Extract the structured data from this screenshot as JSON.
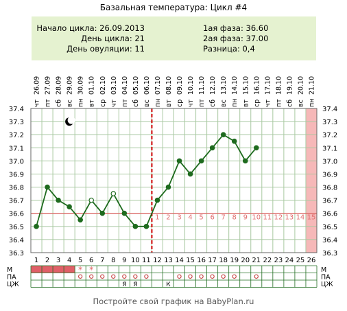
{
  "title": "Базальная температура: Цикл #4",
  "info": {
    "cycle_start": "Начало цикла: 26.09.2013",
    "cycle_day": "День цикла: 21",
    "ovulation_day": "День овуляции: 11",
    "phase1": "1ая фаза: 36.60",
    "phase2": "2ая фаза: 37.00",
    "difference": "Разница: 0,4"
  },
  "footer": "Постройте свой график на BabyPlan.ru",
  "chart_data": {
    "type": "line",
    "x": [
      1,
      2,
      3,
      4,
      5,
      6,
      7,
      8,
      9,
      10,
      11,
      12,
      13,
      14,
      15,
      16,
      17,
      18,
      19,
      20,
      21,
      22,
      23,
      24,
      25,
      26
    ],
    "dates": [
      "26.09",
      "27.09",
      "28.09",
      "29.09",
      "30.09",
      "01.10",
      "02.10",
      "03.10",
      "04.10",
      "05.10",
      "06.10",
      "07.10",
      "08.10",
      "09.10",
      "10.10",
      "11.10",
      "12.10",
      "13.10",
      "14.10",
      "15.10",
      "16.10",
      "17.10",
      "18.10",
      "19.10",
      "20.10",
      "21.10"
    ],
    "weekdays": [
      "чт",
      "пт",
      "сб",
      "вс",
      "пн",
      "вт",
      "ср",
      "чт",
      "пт",
      "сб",
      "вс",
      "пн",
      "вт",
      "ср",
      "чт",
      "пт",
      "сб",
      "вс",
      "пн",
      "вт",
      "ср",
      "чт",
      "пт",
      "сб",
      "вс",
      "пн"
    ],
    "series": [
      {
        "values": [
          36.5,
          36.8,
          36.7,
          36.65,
          36.55,
          36.7,
          36.6,
          36.75,
          36.6,
          36.5,
          36.5,
          36.7,
          36.8,
          37.0,
          36.9,
          37.0,
          37.1,
          37.2,
          37.15,
          37.0,
          37.1,
          null,
          null,
          null,
          null,
          null
        ]
      }
    ],
    "hollow_days": [
      6,
      8
    ],
    "y_ticks": [
      "37.4",
      "37.3",
      "37.2",
      "37.1",
      "37.0",
      "36.9",
      "36.8",
      "36.7",
      "36.6",
      "36.5",
      "36.4",
      "36.3"
    ],
    "ylim": [
      36.3,
      37.4
    ],
    "coverline": 36.6,
    "ovulation_line_day": 11,
    "luteal_day_labels": [
      "1",
      "2",
      "3",
      "4",
      "5",
      "6",
      "7",
      "8",
      "9",
      "10",
      "11",
      "12",
      "13",
      "14",
      "15"
    ],
    "luteal_start_day": 12,
    "highlight_day": 26,
    "moon_day": 4,
    "grid": true,
    "colors": {
      "line": "#1e6b1e",
      "coverline": "#e06060",
      "ovulation": "#cc0000",
      "luteal_label": "#e07070",
      "highlight": "#f6b8b8",
      "menses": "#e06068",
      "grid": "#a8c8a0"
    }
  },
  "rows": [
    {
      "label": "M",
      "cells": [
        "",
        "",
        "",
        "",
        "*",
        "*",
        "",
        "",
        "",
        "",
        "",
        "",
        "",
        "",
        "",
        "",
        "",
        "",
        "",
        "",
        "",
        "",
        "",
        "",
        "",
        ""
      ],
      "filled_days": [
        1,
        2,
        3,
        4
      ]
    },
    {
      "label": "ПА",
      "cells": [
        "",
        "",
        "",
        "",
        "o",
        "o",
        "o",
        "o",
        "o",
        "o",
        "o",
        "",
        "",
        "o",
        "o",
        "o",
        "o",
        "o",
        "o",
        "",
        "o",
        "",
        "",
        "",
        "",
        ""
      ]
    },
    {
      "label": "ЦЖ",
      "cells": [
        "",
        "",
        "",
        "",
        "",
        "",
        "",
        "",
        "Я",
        "Я",
        "",
        "",
        "К",
        "",
        "",
        "",
        "",
        "",
        "",
        "",
        "",
        "",
        "",
        "",
        "",
        ""
      ]
    }
  ]
}
